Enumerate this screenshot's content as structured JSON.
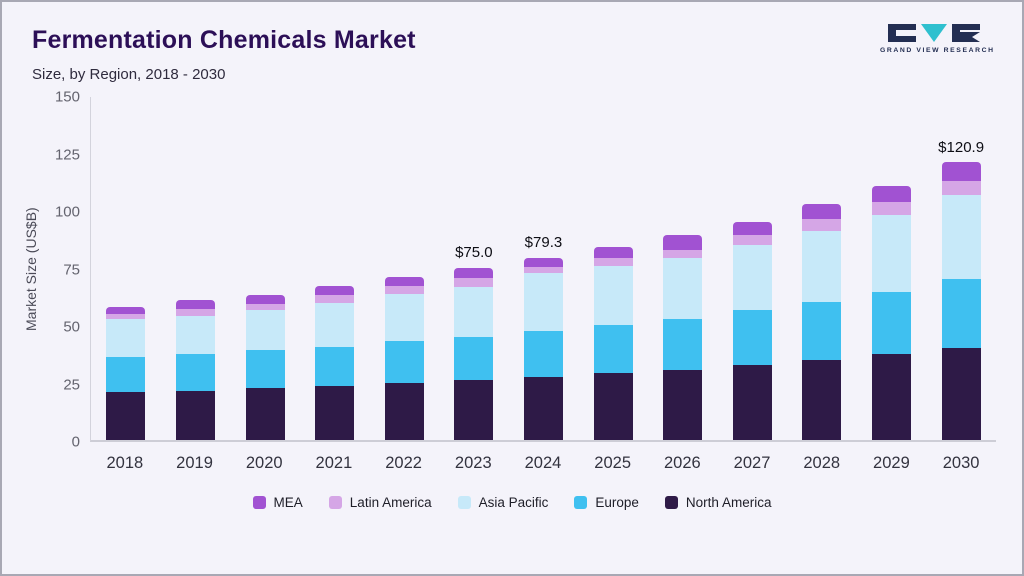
{
  "header": {
    "title": "Fermentation Chemicals Market",
    "subtitle": "Size, by Region, 2018 - 2030",
    "logo_text": "GRAND VIEW RESEARCH"
  },
  "chart_data": {
    "type": "bar",
    "stacked": true,
    "title": "Fermentation Chemicals Market Size, by Region, 2018 - 2030",
    "ylabel": "Market Size (US$B)",
    "ylim": [
      0,
      150
    ],
    "yticks": [
      0,
      25,
      50,
      75,
      100,
      125,
      150
    ],
    "grid": false,
    "legend_position": "bottom",
    "categories": [
      "2018",
      "2019",
      "2020",
      "2021",
      "2022",
      "2023",
      "2024",
      "2025",
      "2026",
      "2027",
      "2028",
      "2029",
      "2030"
    ],
    "series": [
      {
        "name": "North America",
        "color": "#2e1a47",
        "values": [
          21,
          21.5,
          22.5,
          23.5,
          25,
          26,
          27.5,
          29,
          30.5,
          32.5,
          35,
          37.5,
          40
        ]
      },
      {
        "name": "Europe",
        "color": "#3fc0f0",
        "values": [
          15,
          16,
          16.5,
          17,
          18,
          19,
          20,
          21,
          22,
          24,
          25,
          27,
          30
        ]
      },
      {
        "name": "Asia Pacific",
        "color": "#c7e9f9",
        "values": [
          16.5,
          16.5,
          17.5,
          19,
          20.5,
          21.5,
          25.3,
          25.5,
          26.5,
          28.5,
          31,
          33.5,
          36.5
        ]
      },
      {
        "name": "Latin America",
        "color": "#d5a6e6",
        "values": [
          2.5,
          3,
          2.5,
          3.5,
          3.5,
          4,
          2.5,
          3.5,
          3.5,
          4,
          5,
          5.5,
          6
        ]
      },
      {
        "name": "MEA",
        "color": "#a152d2",
        "values": [
          3,
          4,
          4,
          4,
          4,
          4.5,
          4,
          5,
          6.5,
          6,
          6.5,
          7,
          8.4
        ]
      }
    ],
    "totals": [
      58,
      61,
      63,
      67,
      71,
      75,
      79.3,
      84,
      89,
      95,
      102.5,
      110.5,
      120.9
    ],
    "data_labels": {
      "2023": "$75.0",
      "2024": "$79.3",
      "2030": "$120.9"
    },
    "legend_order": [
      "MEA",
      "Latin America",
      "Asia Pacific",
      "Europe",
      "North America"
    ]
  },
  "colors": {
    "background": "#f4f3fa",
    "title": "#2c0f57",
    "logo_navy": "#232e52",
    "logo_teal": "#2fc0cf"
  }
}
